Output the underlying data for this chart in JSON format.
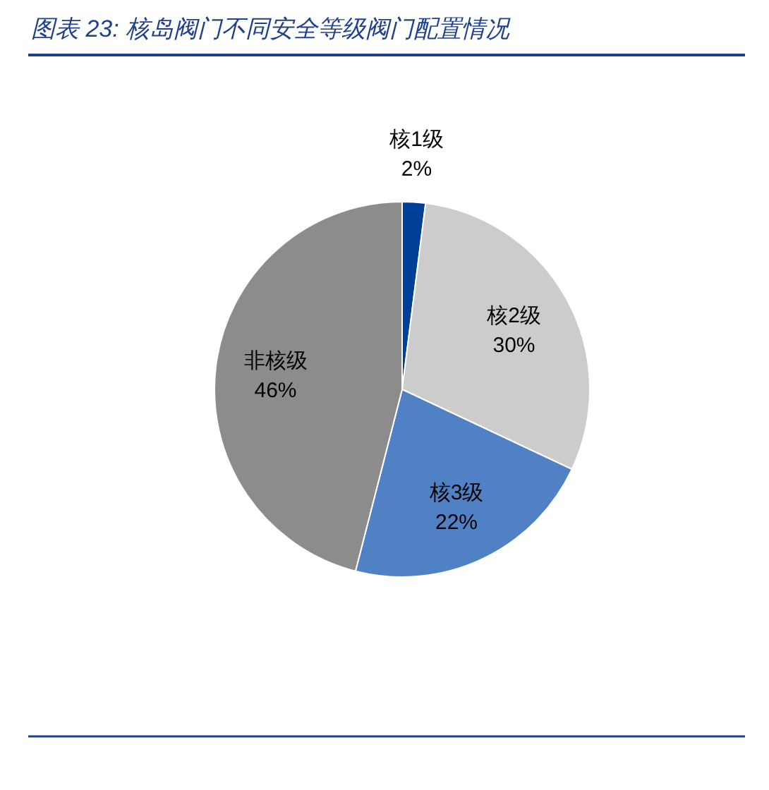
{
  "chart_data": {
    "type": "pie",
    "title": "图表 23:  核岛阀门不同安全等级阀门配置情况",
    "categories": [
      "核1级",
      "核2级",
      "核3级",
      "非核级"
    ],
    "values": [
      2,
      30,
      22,
      46
    ],
    "colors": [
      "#003f98",
      "#cccccc",
      "#4f81c4",
      "#8c8c8c"
    ],
    "value_labels": [
      "2%",
      "30%",
      "22%",
      "46%"
    ]
  }
}
